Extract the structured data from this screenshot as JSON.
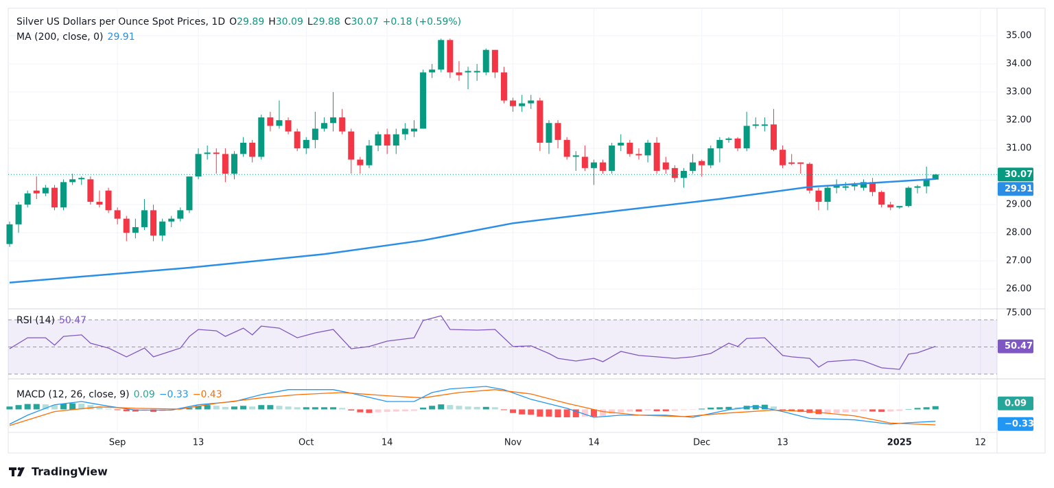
{
  "brand": "TradingView",
  "chart_data": [
    {
      "type": "candlestick",
      "title": "Silver US Dollars per Ounce Spot Prices, 1D",
      "ohlc_letters": [
        "O",
        "H",
        "L",
        "C"
      ],
      "change_label": "+0.18 (+0.59%)",
      "up_color": "#089981",
      "down_color": "#f23645",
      "open": [
        27.6,
        28.3,
        29.0,
        29.5,
        29.4,
        29.6,
        28.9,
        29.8,
        29.9,
        29.9,
        29.1,
        29.5,
        28.8,
        28.5,
        28.0,
        28.2,
        28.8,
        27.9,
        28.4,
        28.5,
        28.8,
        30.0,
        30.8,
        30.85,
        30.8,
        30.1,
        30.8,
        31.2,
        30.7,
        32.1,
        31.8,
        32.0,
        31.6,
        31.0,
        31.3,
        31.7,
        31.9,
        32.1,
        31.6,
        30.6,
        30.4,
        31.1,
        31.5,
        31.1,
        31.5,
        31.6,
        31.7,
        33.7,
        33.8,
        34.85,
        33.7,
        33.7,
        33.7,
        33.7,
        34.5,
        33.7,
        32.7,
        32.5,
        32.6,
        32.7,
        31.2,
        31.9,
        31.3,
        30.7,
        30.7,
        30.3,
        30.5,
        30.2,
        31.1,
        31.2,
        30.8,
        30.75,
        31.2,
        30.5,
        30.3,
        29.95,
        30.2,
        30.55,
        30.4,
        31.0,
        31.3,
        31.35,
        31.0,
        31.8,
        31.8,
        31.85,
        30.95,
        30.5,
        30.5,
        30.45,
        29.5,
        29.1,
        29.6,
        29.6,
        29.65,
        29.6,
        29.8,
        29.45,
        29.0,
        28.9,
        28.95,
        29.6,
        29.65,
        29.89
      ],
      "high": [
        28.4,
        29.1,
        29.5,
        30.0,
        29.7,
        29.7,
        29.9,
        30.1,
        30.0,
        30.0,
        29.5,
        29.6,
        28.9,
        28.6,
        28.5,
        29.2,
        29.0,
        28.5,
        28.6,
        28.9,
        30.0,
        31.0,
        31.1,
        31.0,
        31.0,
        30.9,
        31.4,
        31.3,
        32.2,
        32.3,
        32.7,
        32.1,
        31.7,
        31.4,
        32.3,
        32.1,
        33.0,
        32.4,
        31.7,
        30.7,
        31.3,
        31.6,
        31.7,
        31.7,
        31.9,
        32.0,
        33.8,
        34.0,
        34.9,
        34.9,
        34.1,
        33.9,
        34.0,
        34.55,
        34.5,
        33.9,
        32.8,
        32.9,
        32.9,
        32.8,
        32.0,
        32.0,
        31.4,
        30.9,
        31.1,
        30.6,
        30.6,
        31.2,
        31.5,
        31.3,
        31.0,
        31.3,
        31.4,
        30.7,
        30.4,
        30.3,
        30.8,
        30.6,
        31.1,
        31.4,
        31.4,
        31.4,
        32.3,
        32.1,
        32.1,
        32.4,
        31.1,
        30.8,
        30.5,
        30.5,
        29.6,
        29.7,
        29.9,
        29.8,
        29.8,
        29.9,
        29.95,
        29.5,
        29.1,
        28.95,
        29.65,
        29.7,
        30.35,
        30.09
      ],
      "low": [
        27.5,
        28.0,
        28.9,
        29.2,
        29.3,
        28.8,
        28.8,
        29.7,
        29.7,
        29.0,
        28.9,
        28.7,
        28.3,
        27.7,
        27.8,
        28.1,
        27.7,
        27.7,
        28.2,
        28.4,
        28.7,
        29.9,
        30.6,
        30.1,
        29.8,
        29.9,
        30.7,
        30.5,
        30.6,
        31.6,
        31.7,
        31.5,
        30.9,
        30.8,
        31.0,
        31.6,
        31.6,
        31.5,
        30.1,
        30.1,
        30.3,
        30.9,
        30.8,
        30.8,
        31.3,
        31.4,
        31.7,
        33.5,
        33.7,
        33.5,
        33.4,
        33.1,
        33.4,
        33.6,
        33.5,
        32.6,
        32.3,
        32.3,
        32.4,
        30.9,
        30.8,
        31.0,
        30.6,
        30.2,
        30.2,
        29.7,
        30.1,
        30.1,
        30.9,
        30.7,
        30.6,
        30.5,
        30.1,
        30.1,
        29.8,
        29.6,
        30.1,
        30.0,
        30.3,
        30.5,
        31.2,
        30.9,
        30.9,
        31.7,
        31.6,
        30.9,
        30.3,
        30.4,
        30.1,
        29.4,
        28.8,
        28.8,
        29.4,
        29.5,
        29.5,
        29.5,
        29.3,
        28.9,
        28.8,
        28.85,
        28.9,
        29.4,
        29.4,
        29.88
      ],
      "close": [
        28.3,
        29.0,
        29.4,
        29.4,
        29.6,
        28.9,
        29.8,
        29.9,
        29.95,
        29.1,
        29.0,
        28.8,
        28.5,
        28.0,
        28.2,
        28.8,
        27.9,
        28.4,
        28.5,
        28.8,
        30.0,
        30.8,
        30.85,
        30.8,
        30.1,
        30.8,
        31.2,
        30.7,
        32.1,
        31.8,
        32.0,
        31.6,
        31.0,
        31.3,
        31.7,
        31.9,
        32.1,
        31.6,
        30.6,
        30.4,
        31.1,
        31.5,
        31.1,
        31.5,
        31.7,
        31.7,
        33.7,
        33.8,
        34.85,
        33.7,
        33.6,
        33.75,
        33.75,
        34.5,
        33.7,
        32.7,
        32.5,
        32.6,
        32.7,
        31.2,
        31.9,
        31.3,
        30.7,
        30.75,
        30.3,
        30.5,
        30.2,
        31.1,
        31.2,
        30.8,
        30.75,
        31.2,
        30.2,
        30.25,
        29.95,
        30.2,
        30.5,
        30.4,
        31.0,
        31.3,
        31.35,
        31.0,
        31.8,
        31.85,
        31.85,
        30.95,
        30.4,
        30.45,
        30.45,
        29.5,
        29.1,
        29.6,
        29.7,
        29.65,
        29.7,
        29.8,
        29.45,
        29.0,
        28.9,
        28.95,
        29.6,
        29.65,
        29.89,
        30.07
      ],
      "series": [
        {
          "name": "MA (200, close, 0)",
          "color": "#2a8ee6",
          "x": [
            0,
            20,
            35,
            46,
            56,
            67,
            79,
            89,
            103
          ],
          "values": [
            26.23,
            26.76,
            27.24,
            27.73,
            28.34,
            28.76,
            29.2,
            29.63,
            29.91
          ]
        }
      ],
      "xlim": [
        -0.15,
        109.85
      ],
      "xticks": [
        {
          "value": 12,
          "label": "Sep"
        },
        {
          "value": 21,
          "label": "13"
        },
        {
          "value": 33,
          "label": "Oct"
        },
        {
          "value": 42,
          "label": "14"
        },
        {
          "value": 56,
          "label": "Nov"
        },
        {
          "value": 65,
          "label": "14"
        },
        {
          "value": 77,
          "label": "Dec"
        },
        {
          "value": 86,
          "label": "13"
        },
        {
          "value": 99,
          "label": "2025",
          "bold": true
        },
        {
          "value": 108,
          "label": "12"
        }
      ],
      "ylim": [
        25.32,
        35.98
      ],
      "yticks": [
        {
          "value": 26,
          "label": "26.00"
        },
        {
          "value": 27,
          "label": "27.00"
        },
        {
          "value": 28,
          "label": "28.00"
        },
        {
          "value": 29,
          "label": "29.00"
        },
        {
          "value": 30,
          "label": "30.00"
        },
        {
          "value": 31,
          "label": "31.00"
        },
        {
          "value": 32,
          "label": "32.00"
        },
        {
          "value": 33,
          "label": "33.00"
        },
        {
          "value": 34,
          "label": "34.00"
        },
        {
          "value": 35,
          "label": "35.00"
        }
      ],
      "grid": true
    },
    {
      "type": "line",
      "series": [
        {
          "name": "RSI (14)",
          "color": "#7e57c2",
          "x": [
            0,
            2,
            4,
            5,
            6,
            8,
            9,
            11,
            13,
            15,
            16,
            19,
            20,
            21,
            23,
            24,
            26,
            27,
            28,
            30,
            32,
            34,
            36,
            38,
            40,
            42,
            45,
            46,
            48,
            49,
            52,
            54,
            56,
            58,
            60,
            61,
            63,
            65,
            66,
            68,
            70,
            72,
            74,
            76,
            78,
            80,
            81,
            82,
            84,
            86,
            87,
            89,
            90,
            91,
            94,
            95,
            97,
            99,
            100,
            101,
            103
          ],
          "values": [
            48.7,
            56.8,
            56.8,
            51.3,
            57.8,
            58.9,
            52.8,
            49.2,
            42.7,
            49.2,
            42.7,
            49.2,
            57.8,
            62.9,
            61.9,
            57.8,
            63.9,
            58.9,
            65.4,
            63.9,
            56.8,
            60.4,
            62.9,
            48.7,
            50.3,
            54.3,
            56.8,
            69.5,
            73.0,
            62.9,
            62.4,
            62.9,
            50.3,
            50.8,
            45.2,
            41.6,
            39.6,
            41.6,
            39.1,
            46.7,
            43.7,
            42.7,
            41.6,
            42.7,
            45.2,
            52.8,
            50.3,
            56.3,
            56.8,
            43.7,
            42.7,
            41.6,
            35.1,
            39.1,
            40.6,
            39.6,
            34.6,
            33.5,
            44.7,
            45.7,
            50.47
          ]
        }
      ],
      "bands": [
        70,
        50,
        30
      ],
      "band_fill": "rgba(126,87,194,0.10)",
      "ylim": [
        26.46,
        77.09
      ],
      "yticks": [
        {
          "value": 75,
          "label": "75.00"
        }
      ]
    },
    {
      "type": "macd",
      "title": "MACD (12, 26, close, 9)",
      "histogram": {
        "values": [
          0.08,
          0.12,
          0.15,
          0.15,
          0.14,
          0.12,
          0.16,
          0.17,
          0.16,
          0.12,
          0.06,
          0.02,
          -0.02,
          -0.05,
          -0.06,
          -0.04,
          -0.07,
          -0.05,
          -0.03,
          -0.01,
          0.04,
          0.1,
          0.12,
          0.1,
          0.07,
          0.08,
          0.1,
          0.08,
          0.12,
          0.12,
          0.1,
          0.08,
          0.06,
          0.06,
          0.06,
          0.06,
          0.06,
          0.04,
          -0.03,
          -0.08,
          -0.1,
          -0.08,
          -0.07,
          -0.06,
          -0.05,
          -0.04,
          0.05,
          0.1,
          0.14,
          0.12,
          0.1,
          0.08,
          0.07,
          0.07,
          0.06,
          -0.02,
          -0.1,
          -0.14,
          -0.15,
          -0.2,
          -0.2,
          -0.22,
          -0.22,
          -0.22,
          -0.2,
          -0.2,
          -0.18,
          -0.12,
          -0.08,
          -0.06,
          -0.06,
          -0.03,
          -0.05,
          -0.05,
          -0.04,
          -0.02,
          -0.01,
          0.02,
          0.05,
          0.06,
          0.07,
          0.06,
          0.1,
          0.12,
          0.13,
          0.08,
          -0.02,
          -0.05,
          -0.07,
          -0.1,
          -0.13,
          -0.12,
          -0.1,
          -0.08,
          -0.07,
          -0.05,
          -0.06,
          -0.07,
          -0.06,
          -0.04,
          0.01,
          0.04,
          0.06,
          0.09
        ],
        "colors": {
          "up_rising": "#26a69a",
          "up_falling": "#b2dfdb",
          "down_rising": "#ffcdd2",
          "down_falling": "#ff5252"
        }
      },
      "series": [
        {
          "color": "#2196f3",
          "last_label": "−0.33",
          "x": [
            0,
            2,
            5,
            8,
            11,
            14,
            18,
            21,
            25,
            28,
            31,
            36,
            38,
            42,
            45,
            47,
            49,
            53,
            55,
            58,
            62,
            65,
            68,
            73,
            76,
            80,
            83,
            86,
            89,
            94,
            98,
            100,
            103
          ],
          "values": [
            -0.41,
            -0.16,
            0.13,
            0.22,
            0.09,
            -0.02,
            -0.02,
            0.13,
            0.22,
            0.41,
            0.55,
            0.55,
            0.45,
            0.22,
            0.22,
            0.47,
            0.57,
            0.64,
            0.55,
            0.28,
            0.03,
            -0.22,
            -0.16,
            -0.16,
            -0.22,
            -0.01,
            0.09,
            -0.06,
            -0.25,
            -0.29,
            -0.41,
            -0.37,
            -0.33
          ]
        },
        {
          "color": "#ff6d00",
          "last_label": "−0.43",
          "x": [
            0,
            5,
            10,
            14,
            19,
            23,
            28,
            32,
            37,
            42,
            46,
            50,
            54,
            58,
            62,
            66,
            70,
            75,
            80,
            85,
            89,
            94,
            98,
            103
          ],
          "values": [
            -0.45,
            -0.06,
            0.07,
            0.03,
            0.01,
            0.17,
            0.32,
            0.41,
            0.47,
            0.38,
            0.32,
            0.47,
            0.55,
            0.43,
            0.17,
            -0.06,
            -0.16,
            -0.2,
            -0.1,
            -0.02,
            -0.06,
            -0.18,
            -0.38,
            -0.43
          ]
        }
      ],
      "ylim": [
        -0.64,
        0.83
      ]
    }
  ]
}
